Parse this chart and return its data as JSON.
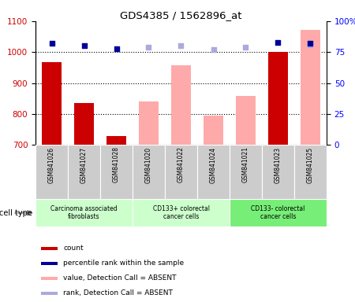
{
  "title": "GDS4385 / 1562896_at",
  "samples": [
    "GSM841026",
    "GSM841027",
    "GSM841028",
    "GSM841020",
    "GSM841022",
    "GSM841024",
    "GSM841021",
    "GSM841023",
    "GSM841025"
  ],
  "count_values": [
    968,
    835,
    730,
    null,
    null,
    null,
    null,
    1000,
    null
  ],
  "value_absent": [
    null,
    null,
    null,
    840,
    958,
    795,
    858,
    null,
    1073
  ],
  "rank_present_blue": [
    82,
    80,
    78,
    null,
    null,
    null,
    null,
    83,
    82
  ],
  "rank_absent_lightblue": [
    null,
    null,
    null,
    79,
    80,
    77,
    79,
    null,
    81
  ],
  "ylim_left": [
    700,
    1100
  ],
  "ylim_right": [
    0,
    100
  ],
  "yticks_left": [
    700,
    800,
    900,
    1000,
    1100
  ],
  "ytick_labels_right": [
    "0",
    "25",
    "50",
    "75",
    "100%"
  ],
  "cell_groups": [
    {
      "label": "Carcinoma associated\nfibroblasts",
      "indices": [
        0,
        2
      ],
      "color": "#ccffcc"
    },
    {
      "label": "CD133+ colorectal\ncancer cells",
      "indices": [
        3,
        5
      ],
      "color": "#ccffcc"
    },
    {
      "label": "CD133- colorectal\ncancer cells",
      "indices": [
        6,
        8
      ],
      "color": "#77ee77"
    }
  ],
  "bar_width": 0.6,
  "count_color": "#cc0000",
  "value_absent_color": "#ffaaaa",
  "rank_present_color": "#000099",
  "rank_absent_color": "#aaaadd",
  "background_plot": "#ffffff",
  "background_xlabels": "#cccccc",
  "legend_items": [
    {
      "color": "#cc0000",
      "label": "count"
    },
    {
      "color": "#000099",
      "label": "percentile rank within the sample"
    },
    {
      "color": "#ffaaaa",
      "label": "value, Detection Call = ABSENT"
    },
    {
      "color": "#aaaadd",
      "label": "rank, Detection Call = ABSENT"
    }
  ]
}
